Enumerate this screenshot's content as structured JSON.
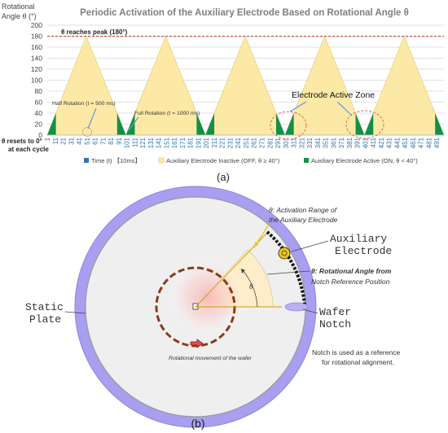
{
  "chart_data": {
    "type": "area",
    "title": "Periodic Activation of the Auxiliary Electrode Based on Rotational Angle θ",
    "ylabel_lines": [
      "Rotational",
      "Angle θ (°)"
    ],
    "xlabel_lines": [
      "θ resets to 0°",
      "at each cycle"
    ],
    "ylim": [
      0,
      200
    ],
    "yticks": [
      0,
      20,
      40,
      60,
      80,
      100,
      120,
      140,
      160,
      180,
      200
    ],
    "xlim": [
      1,
      500
    ],
    "xticks": [
      1,
      11,
      21,
      31,
      41,
      51,
      61,
      71,
      81,
      91,
      101,
      111,
      121,
      131,
      141,
      151,
      161,
      171,
      181,
      191,
      201,
      211,
      221,
      231,
      241,
      251,
      261,
      271,
      281,
      291,
      301,
      311,
      321,
      331,
      341,
      351,
      361,
      371,
      381,
      391,
      401,
      411,
      421,
      431,
      441,
      451,
      461,
      471,
      481,
      491
    ],
    "grid": true,
    "legend_position": "bottom",
    "series": [
      {
        "name": "Time (t) 【10ms】",
        "color": "#2e75b6",
        "type": "bar",
        "values": []
      },
      {
        "name": "Auxiliary Electrode Inactive (OFF, θ ≥ 40°)",
        "color": "#fde9a6",
        "type": "area",
        "x": [
          1,
          50,
          100,
          150,
          200,
          250,
          300,
          350,
          400,
          450,
          500
        ],
        "y": [
          0,
          180,
          0,
          180,
          0,
          180,
          0,
          180,
          0,
          180,
          0
        ]
      },
      {
        "name": "Auxiliary Electrode Active (ON, θ < 40°)",
        "color": "#119146",
        "type": "area",
        "threshold": 40
      }
    ],
    "peak_line": {
      "value": 180,
      "label": "θ reaches peak (180°)",
      "color": "#c0392b"
    },
    "annotations": [
      {
        "text": "Half Rotation (t = 500 ms)",
        "x": 50,
        "y": 0
      },
      {
        "text": "Full Rotation (t = 1000 ms)",
        "x": 100,
        "y": 0
      },
      {
        "text": "Electrode Active Zone",
        "x": 305,
        "y": 0
      }
    ],
    "panel_label": "(a)"
  },
  "diagram": {
    "labels": {
      "theta_activation_line1": "θ: Activation Range of",
      "theta_activation_line2": "the Auxiliary Electrode",
      "aux_electrode_line1": "Auxiliary",
      "aux_electrode_line2": "Electrode",
      "theta_rot_line1": "θ: Rotational Angle from",
      "theta_rot_line2": "Notch Reference Position",
      "static_plate_line1": "Static",
      "static_plate_line2": "Plate",
      "wafer_notch_line1": "Wafer",
      "wafer_notch_line2": "Notch",
      "rotation_text": "Rotational movement of the wafer",
      "notch_note_line1": "Notch is used as a reference",
      "notch_note_line2": "for rotational alignment.",
      "theta_symbol": "θ"
    },
    "panel_label": "(b)",
    "colors": {
      "static_plate": "#a89ff0",
      "wafer": "#efefef",
      "sector": "#fdeec9",
      "rotation_ring": "#8b3a1a",
      "electrode": "#f0c419",
      "arrow": "#f0c419"
    }
  }
}
